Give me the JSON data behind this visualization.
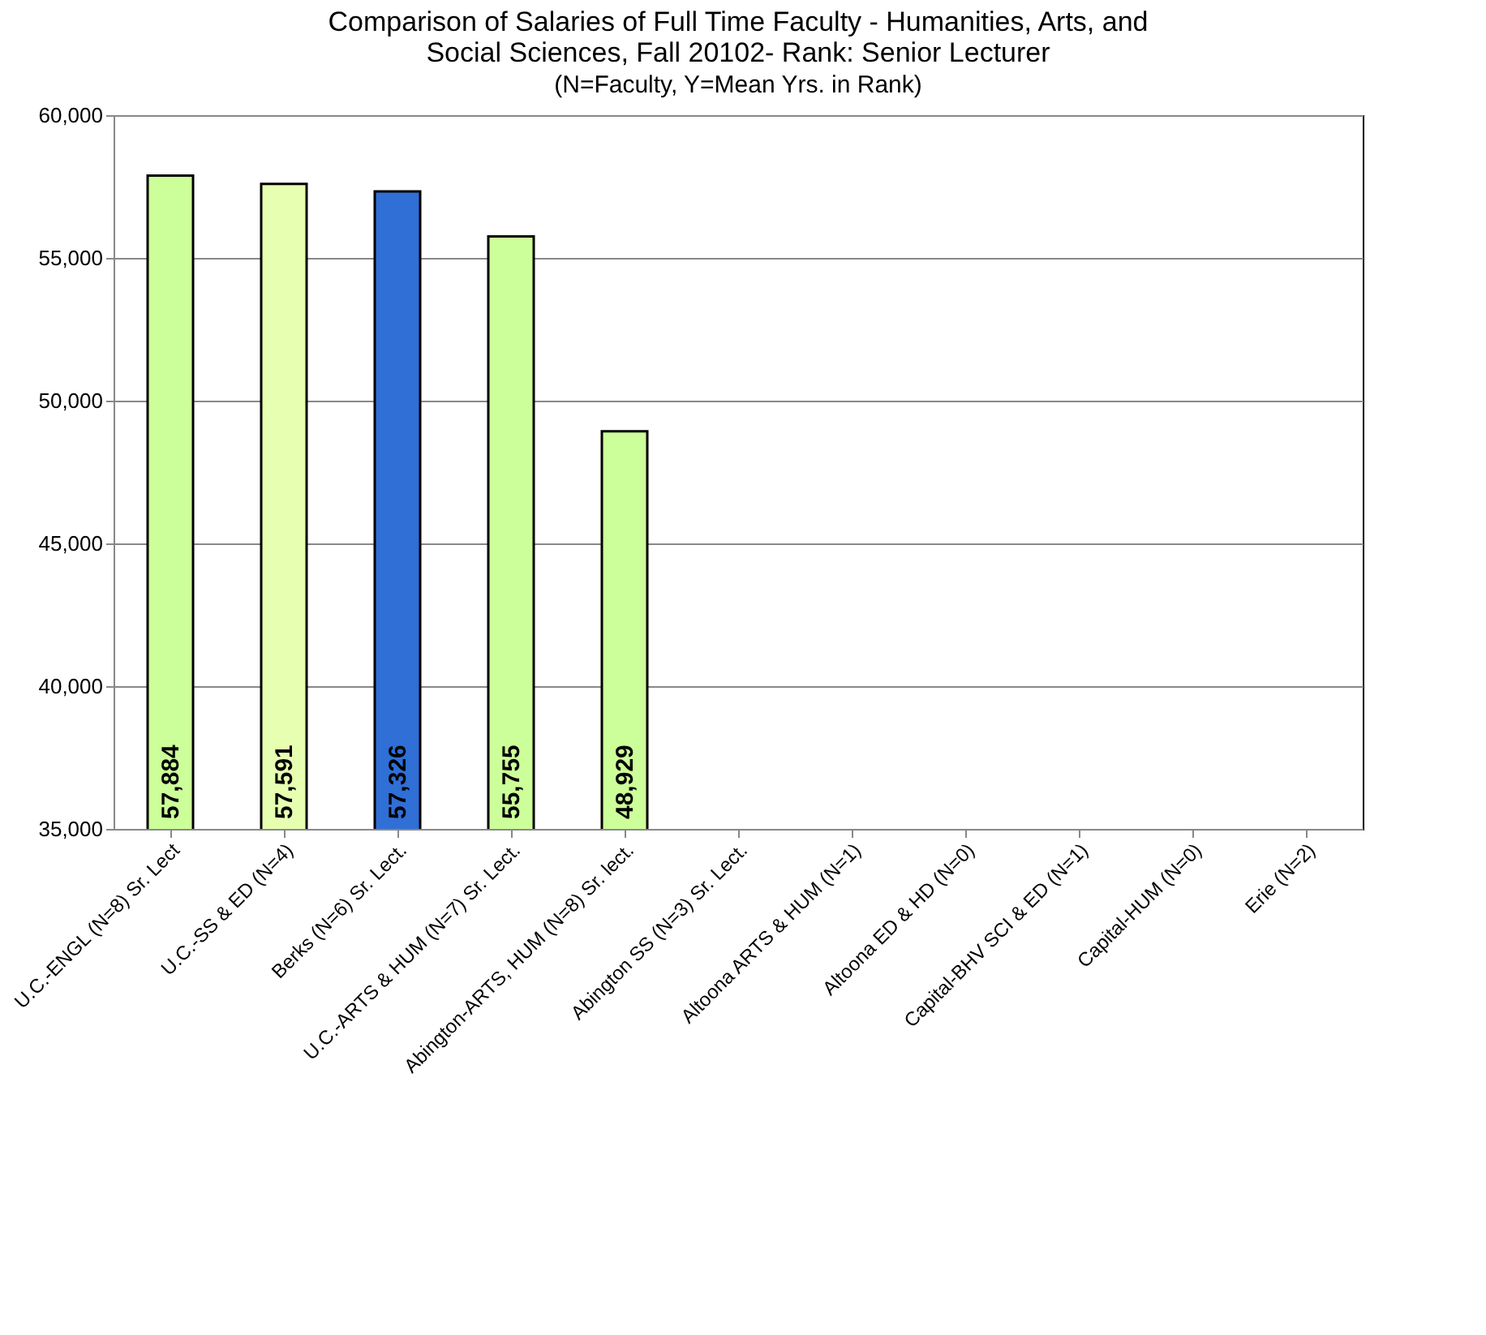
{
  "chart_data": {
    "type": "bar",
    "title": "Comparison of Salaries of Full Time Faculty - Humanities, Arts, and Social Sciences, Fall 20102- Rank: Senior Lecturer",
    "subtitle": "(N=Faculty, Y=Mean Yrs. in Rank)",
    "categories": [
      "U.C.-ENGL (N=8) Sr. Lect",
      "U.C.-SS & ED (N=4)",
      "Berks (N=6) Sr. Lect.",
      "U.C.-ARTS & HUM (N=7) Sr. Lect.",
      "Abington-ARTS, HUM (N=8) Sr. lect.",
      "Abington SS (N=3) Sr. Lect.",
      "Altoona ARTS & HUM (N=1)",
      "Altoona ED & HD (N=0)",
      "Capital-BHV SCI & ED (N=1)",
      "Capital-HUM (N=0)",
      "Erie (N=2)"
    ],
    "values": [
      57884,
      57591,
      57326,
      55755,
      48929,
      null,
      null,
      null,
      null,
      null,
      null
    ],
    "colors": [
      "#ccff99",
      "#e6ffb0",
      "#2f6fd6",
      "#ccff99",
      "#ccff99",
      "#ccff99",
      "#ccff99",
      "#ccff99",
      "#ccff99",
      "#ccff99",
      "#ccff99"
    ],
    "ylim": [
      35000,
      60000
    ],
    "yticks": [
      {
        "value": 35000,
        "label": "35,000"
      },
      {
        "value": 40000,
        "label": "40,000"
      },
      {
        "value": 45000,
        "label": "45,000"
      },
      {
        "value": 50000,
        "label": "50,000"
      },
      {
        "value": 55000,
        "label": "55,000"
      },
      {
        "value": 60000,
        "label": "60,000"
      }
    ],
    "grid": "y",
    "value_labels": [
      "57,884",
      "57,591",
      "57,326",
      "55,755",
      "48,929",
      null,
      null,
      null,
      null,
      null,
      null
    ]
  }
}
